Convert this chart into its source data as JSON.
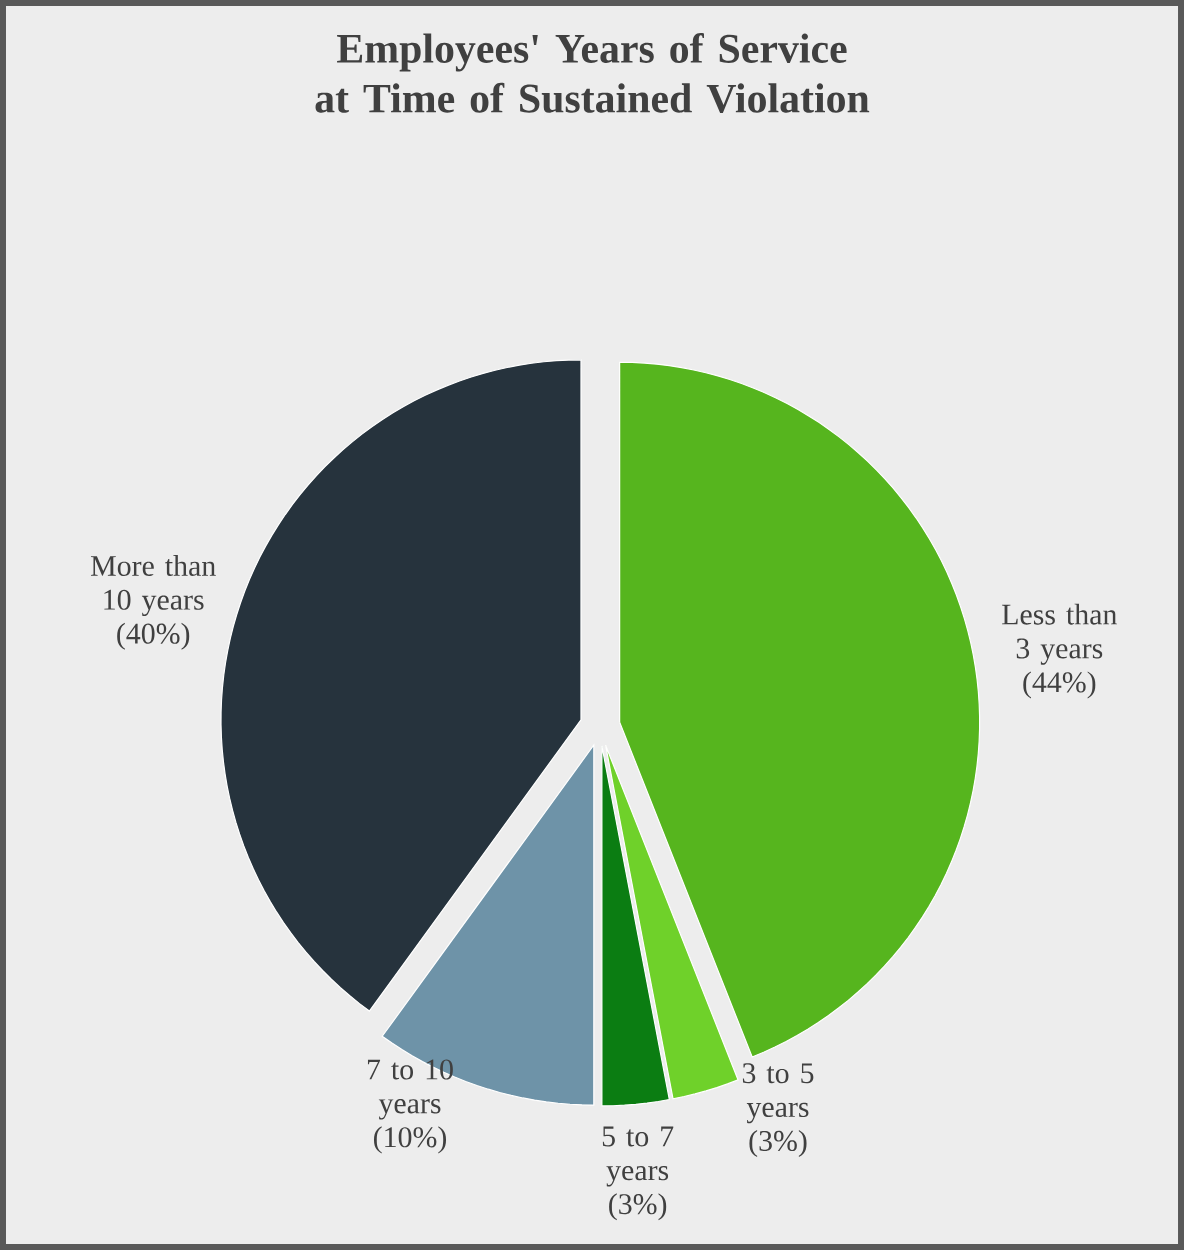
{
  "chart_data": {
    "type": "pie",
    "title": "Employees' Years of Service at Time of Sustained Violation",
    "categories": [
      "Less than 3 years",
      "3 to 5 years",
      "5 to 7 years",
      "7 to 10 years",
      "More than 10 years"
    ],
    "values": [
      44,
      3,
      3,
      10,
      40
    ],
    "colors": [
      "#56b51e",
      "#6fd12a",
      "#0b7d12",
      "#6e93a8",
      "#26333d"
    ],
    "value_labels": [
      "(44%)",
      "(3%)",
      "(3%)",
      "(10%)",
      "(40%)"
    ]
  }
}
